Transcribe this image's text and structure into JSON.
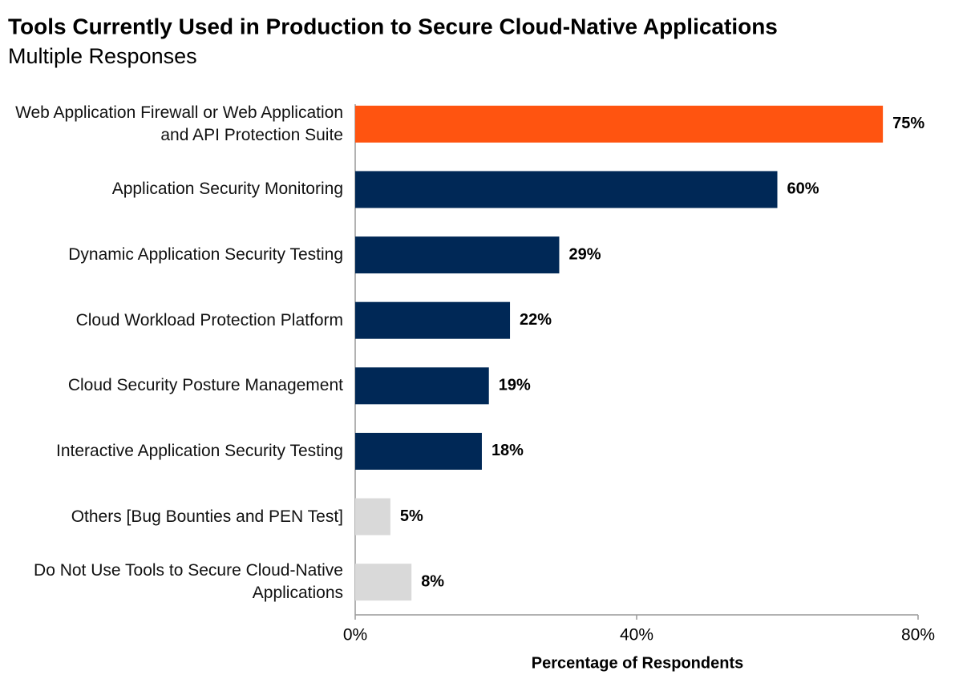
{
  "chart_data": {
    "type": "hbar",
    "title": "Tools Currently Used in Production to Secure Cloud-Native Applications",
    "subtitle": "Multiple Responses",
    "x_label": "Percentage of Respondents",
    "categories": [
      "Web Application Firewall or Web Application and API Protection Suite",
      "Application Security Monitoring",
      "Dynamic Application Security Testing",
      "Cloud Workload Protection Platform",
      "Cloud Security Posture Management",
      "Interactive Application Security Testing",
      "Others [Bug Bounties and PEN Test]",
      "Do Not Use Tools to Secure Cloud-Native Applications"
    ],
    "values": [
      75,
      60,
      29,
      22,
      19,
      18,
      5,
      8
    ],
    "value_labels": [
      "75%",
      "60%",
      "29%",
      "22%",
      "19%",
      "18%",
      "5%",
      "8%"
    ],
    "colors": [
      "#ff5410",
      "#002856",
      "#002856",
      "#002856",
      "#002856",
      "#002856",
      "#d9d9d9",
      "#d9d9d9"
    ],
    "xlim": [
      0,
      80
    ],
    "xticks": [
      {
        "value": 0,
        "label": "0%"
      },
      {
        "value": 40,
        "label": "40%"
      },
      {
        "value": 80,
        "label": "80%"
      }
    ]
  }
}
